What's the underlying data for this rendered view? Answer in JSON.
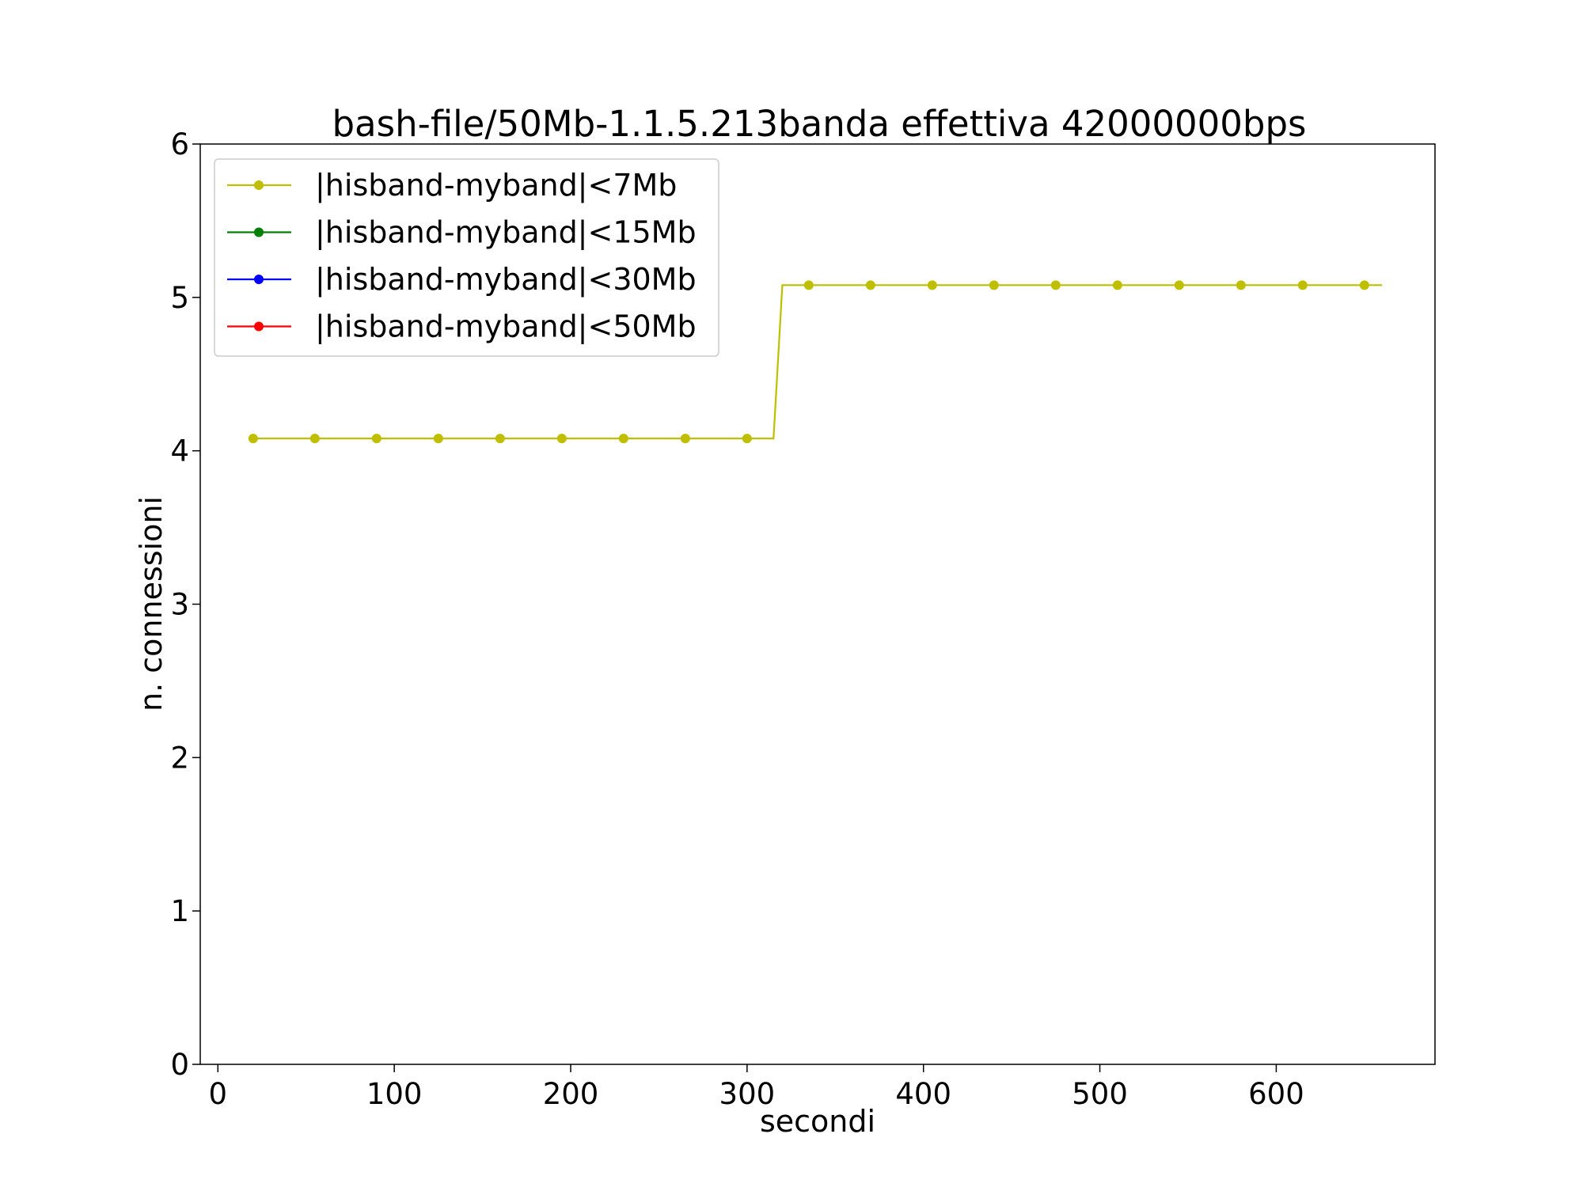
{
  "chart_data": {
    "type": "line",
    "title": "bash-file/50Mb-1.1.5.213banda effettiva 42000000bps",
    "xlabel": "secondi",
    "ylabel": "n. connessioni",
    "xlim": [
      -10,
      690
    ],
    "ylim": [
      0,
      6
    ],
    "xticks": [
      0,
      100,
      200,
      300,
      400,
      500,
      600
    ],
    "yticks": [
      0,
      1,
      2,
      3,
      4,
      5,
      6
    ],
    "grid": false,
    "legend_position": "top-left",
    "series": [
      {
        "name": "|hisband-myband|<7Mb",
        "color": "#bfbf00",
        "line_points": [
          [
            20,
            4.08
          ],
          [
            315,
            4.08
          ],
          [
            320,
            5.08
          ],
          [
            660,
            5.08
          ]
        ],
        "markers": [
          [
            20,
            4.08
          ],
          [
            55,
            4.08
          ],
          [
            90,
            4.08
          ],
          [
            125,
            4.08
          ],
          [
            160,
            4.08
          ],
          [
            195,
            4.08
          ],
          [
            230,
            4.08
          ],
          [
            265,
            4.08
          ],
          [
            300,
            4.08
          ],
          [
            335,
            5.08
          ],
          [
            370,
            5.08
          ],
          [
            405,
            5.08
          ],
          [
            440,
            5.08
          ],
          [
            475,
            5.08
          ],
          [
            510,
            5.08
          ],
          [
            545,
            5.08
          ],
          [
            580,
            5.08
          ],
          [
            615,
            5.08
          ],
          [
            650,
            5.08
          ]
        ]
      },
      {
        "name": "|hisband-myband|<15Mb",
        "color": "#008000",
        "line_points": [],
        "markers": []
      },
      {
        "name": "|hisband-myband|<30Mb",
        "color": "#0000ff",
        "line_points": [],
        "markers": []
      },
      {
        "name": "|hisband-myband|<50Mb",
        "color": "#ff0000",
        "line_points": [],
        "markers": []
      }
    ]
  }
}
